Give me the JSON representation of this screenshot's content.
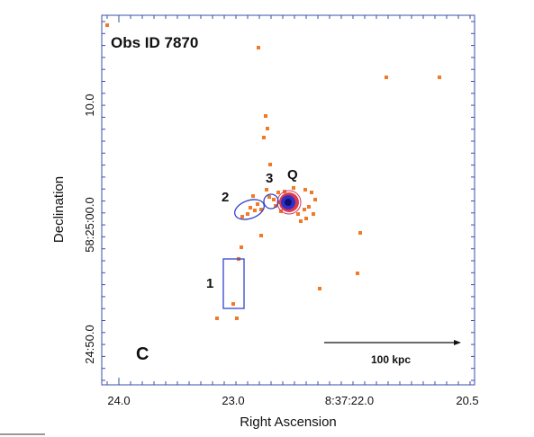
{
  "figure": {
    "title": "Obs ID 7870",
    "panel_label": "C",
    "scale_bar": "100 kpc",
    "regions": [
      "1",
      "2",
      "3",
      "Q"
    ],
    "x_axis": {
      "label": "Right Ascension",
      "ticks": [
        "24.0",
        "23.0",
        "8:37:22.0",
        "20.5"
      ]
    },
    "y_axis": {
      "label": "Declination",
      "ticks": [
        "10.0",
        "58:25:00.0",
        "24:50.0"
      ]
    }
  }
}
